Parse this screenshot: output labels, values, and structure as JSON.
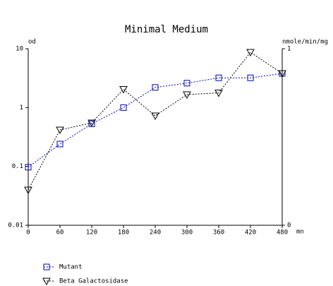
{
  "chart_data": {
    "type": "line",
    "title": "Minimal Medium",
    "ylabel": "od",
    "y2label": "nmole/min/mg",
    "xlabel": "mn",
    "x": [
      0,
      60,
      120,
      180,
      240,
      300,
      360,
      420,
      480
    ],
    "xlim": [
      0,
      480
    ],
    "xticks": [
      0,
      60,
      120,
      180,
      240,
      300,
      360,
      420,
      480
    ],
    "ylim": [
      0.01,
      10
    ],
    "yticks": [
      0.01,
      0.1,
      1,
      10
    ],
    "ylog": true,
    "y2lim": [
      0,
      1
    ],
    "y2ticks": [
      0,
      1
    ],
    "grid": false,
    "legend": "bottom-left",
    "series": [
      {
        "name": "Mutant",
        "color": "#0000cc",
        "marker": "square",
        "values": [
          0.097,
          0.24,
          0.53,
          1.0,
          2.2,
          2.6,
          3.2,
          3.2,
          3.8
        ]
      },
      {
        "name": "Beta Galactosidase",
        "color": "#000000",
        "marker": "triangle-down",
        "axis": "y2",
        "values": [
          0.2,
          0.54,
          0.58,
          0.77,
          0.62,
          0.74,
          0.75,
          0.98,
          0.86
        ]
      }
    ]
  }
}
